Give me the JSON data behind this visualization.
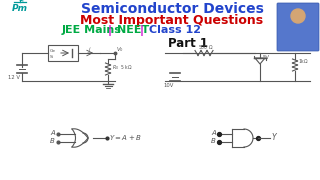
{
  "bg_color": "#ffffff",
  "title1": "Semiconductor Devices",
  "title1_color": "#2244cc",
  "title2": "Most Important Questions",
  "title2_color": "#cc0000",
  "part_text": "Part 1",
  "part_color": "#111111",
  "logo_color": "#009999",
  "logo_text": "Pm",
  "cc": "#555555",
  "gc": "#555555",
  "jee_color": "#00aa44",
  "pipe_color": "#cc00cc",
  "neet_color": "#00aa44",
  "class12_color": "#2244cc"
}
